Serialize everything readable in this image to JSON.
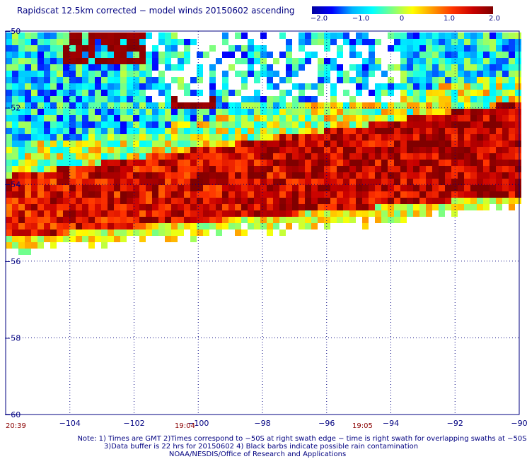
{
  "title": "Rapidscat 12.5km corrected − model winds 20150602 ascending",
  "colorbar": {
    "ticks": [
      "−2.0",
      "−1.0",
      "0",
      "1.0",
      "2.0"
    ],
    "stops": [
      "#0000a0",
      "#0000ff",
      "#00b4ff",
      "#00ffff",
      "#7fff7f",
      "#ffff00",
      "#ff9900",
      "#ff3300",
      "#c80000",
      "#800000"
    ]
  },
  "axes": {
    "lon_ticks": [
      "−104",
      "−102",
      "−100",
      "−98",
      "−96",
      "−94",
      "−92",
      "−90"
    ],
    "lat_ticks": [
      "−50",
      "−52",
      "−54",
      "−56",
      "−58",
      "−60"
    ]
  },
  "times": [
    "20:39",
    "19:04",
    "19:05"
  ],
  "notes": {
    "line1": "Note: 1) Times are GMT 2)Times correspond to −50S at right swath edge − time is right swath for overlapping swaths at −50S",
    "line2": "3)Data buffer is 22 hrs for 20150602 4) Black barbs indicate possible rain contamination",
    "line3": "NOAA/NESDIS/Office of Research and Applications"
  }
}
